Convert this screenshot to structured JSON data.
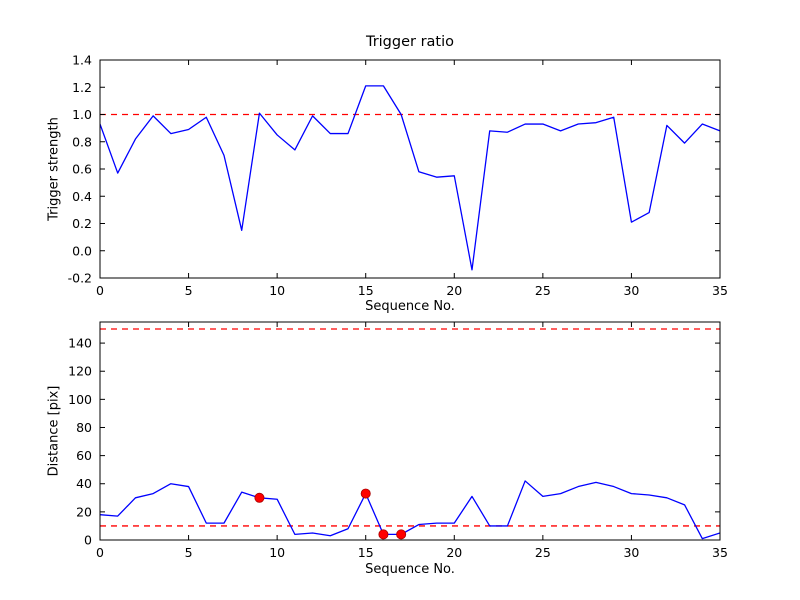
{
  "figure": {
    "background": "#ffffff",
    "frame_color": "#000000",
    "line_color": "#0000ff",
    "threshold_color": "#ff0000",
    "marker_color": "#ff0000"
  },
  "chart_data": [
    {
      "name": "trigger-ratio-chart",
      "type": "line",
      "title": "Trigger ratio",
      "xlabel": "Sequence No.",
      "ylabel": "Trigger strength",
      "xlim": [
        0,
        35
      ],
      "ylim": [
        -0.2,
        1.4
      ],
      "grid": false,
      "legend": "none",
      "xticks": [
        0,
        5,
        10,
        15,
        20,
        25,
        30,
        35
      ],
      "xticklabels": [
        "0",
        "5",
        "10",
        "15",
        "20",
        "25",
        "30",
        "35"
      ],
      "yticks": [
        -0.2,
        0.0,
        0.2,
        0.4,
        0.6,
        0.8,
        1.0,
        1.2,
        1.4
      ],
      "yticklabels": [
        "-0.2",
        "0.0",
        "0.2",
        "0.4",
        "0.6",
        "0.8",
        "1.0",
        "1.2",
        "1.4"
      ],
      "x": [
        0,
        1,
        2,
        3,
        4,
        5,
        6,
        7,
        8,
        9,
        10,
        11,
        12,
        13,
        14,
        15,
        16,
        17,
        18,
        19,
        20,
        21,
        22,
        23,
        24,
        25,
        26,
        27,
        28,
        29,
        30,
        31,
        32,
        33,
        34,
        35
      ],
      "series": [
        {
          "name": "trigger-strength-line",
          "color": "#0000ff",
          "values": [
            0.93,
            0.57,
            0.82,
            0.99,
            0.86,
            0.89,
            0.98,
            0.7,
            0.15,
            1.01,
            0.85,
            0.74,
            0.99,
            0.86,
            0.86,
            1.21,
            1.21,
            1.0,
            0.58,
            0.54,
            0.55,
            -0.14,
            0.88,
            0.87,
            0.93,
            0.93,
            0.88,
            0.93,
            0.94,
            0.98,
            0.21,
            0.28,
            0.92,
            0.79,
            0.93,
            0.88
          ]
        }
      ],
      "hlines": [
        {
          "name": "trigger-threshold",
          "y": 1.0,
          "color": "#ff0000",
          "style": "dashed"
        }
      ],
      "markers": {
        "name": "none",
        "color": "#ff0000",
        "points": []
      }
    },
    {
      "name": "distance-chart",
      "type": "line",
      "title": "",
      "xlabel": "Sequence No.",
      "ylabel": "Distance [pix]",
      "xlim": [
        0,
        35
      ],
      "ylim": [
        0,
        155
      ],
      "grid": false,
      "legend": "none",
      "xticks": [
        0,
        5,
        10,
        15,
        20,
        25,
        30,
        35
      ],
      "xticklabels": [
        "0",
        "5",
        "10",
        "15",
        "20",
        "25",
        "30",
        "35"
      ],
      "yticks": [
        0,
        20,
        40,
        60,
        80,
        100,
        120,
        140
      ],
      "yticklabels": [
        "0",
        "20",
        "40",
        "60",
        "80",
        "100",
        "120",
        "140"
      ],
      "x": [
        0,
        1,
        2,
        3,
        4,
        5,
        6,
        7,
        8,
        9,
        10,
        11,
        12,
        13,
        14,
        15,
        16,
        17,
        18,
        19,
        20,
        21,
        22,
        23,
        24,
        25,
        26,
        27,
        28,
        29,
        30,
        31,
        32,
        33,
        34,
        35
      ],
      "series": [
        {
          "name": "distance-line",
          "color": "#0000ff",
          "values": [
            18,
            17,
            30,
            33,
            40,
            38,
            12,
            12,
            34,
            30,
            29,
            4,
            5,
            3,
            8,
            33,
            4,
            4,
            11,
            12,
            12,
            31,
            10,
            10,
            42,
            31,
            33,
            38,
            41,
            38,
            33,
            32,
            30,
            25,
            1,
            5
          ]
        }
      ],
      "hlines": [
        {
          "name": "upper-distance-threshold",
          "y": 150,
          "color": "#ff0000",
          "style": "dashed"
        },
        {
          "name": "lower-distance-threshold",
          "y": 10,
          "color": "#ff0000",
          "style": "dashed"
        }
      ],
      "markers": {
        "name": "trigger-event-markers",
        "color": "#ff0000",
        "points": [
          [
            9,
            30
          ],
          [
            15,
            33
          ],
          [
            16,
            4
          ],
          [
            17,
            4
          ]
        ]
      }
    }
  ]
}
